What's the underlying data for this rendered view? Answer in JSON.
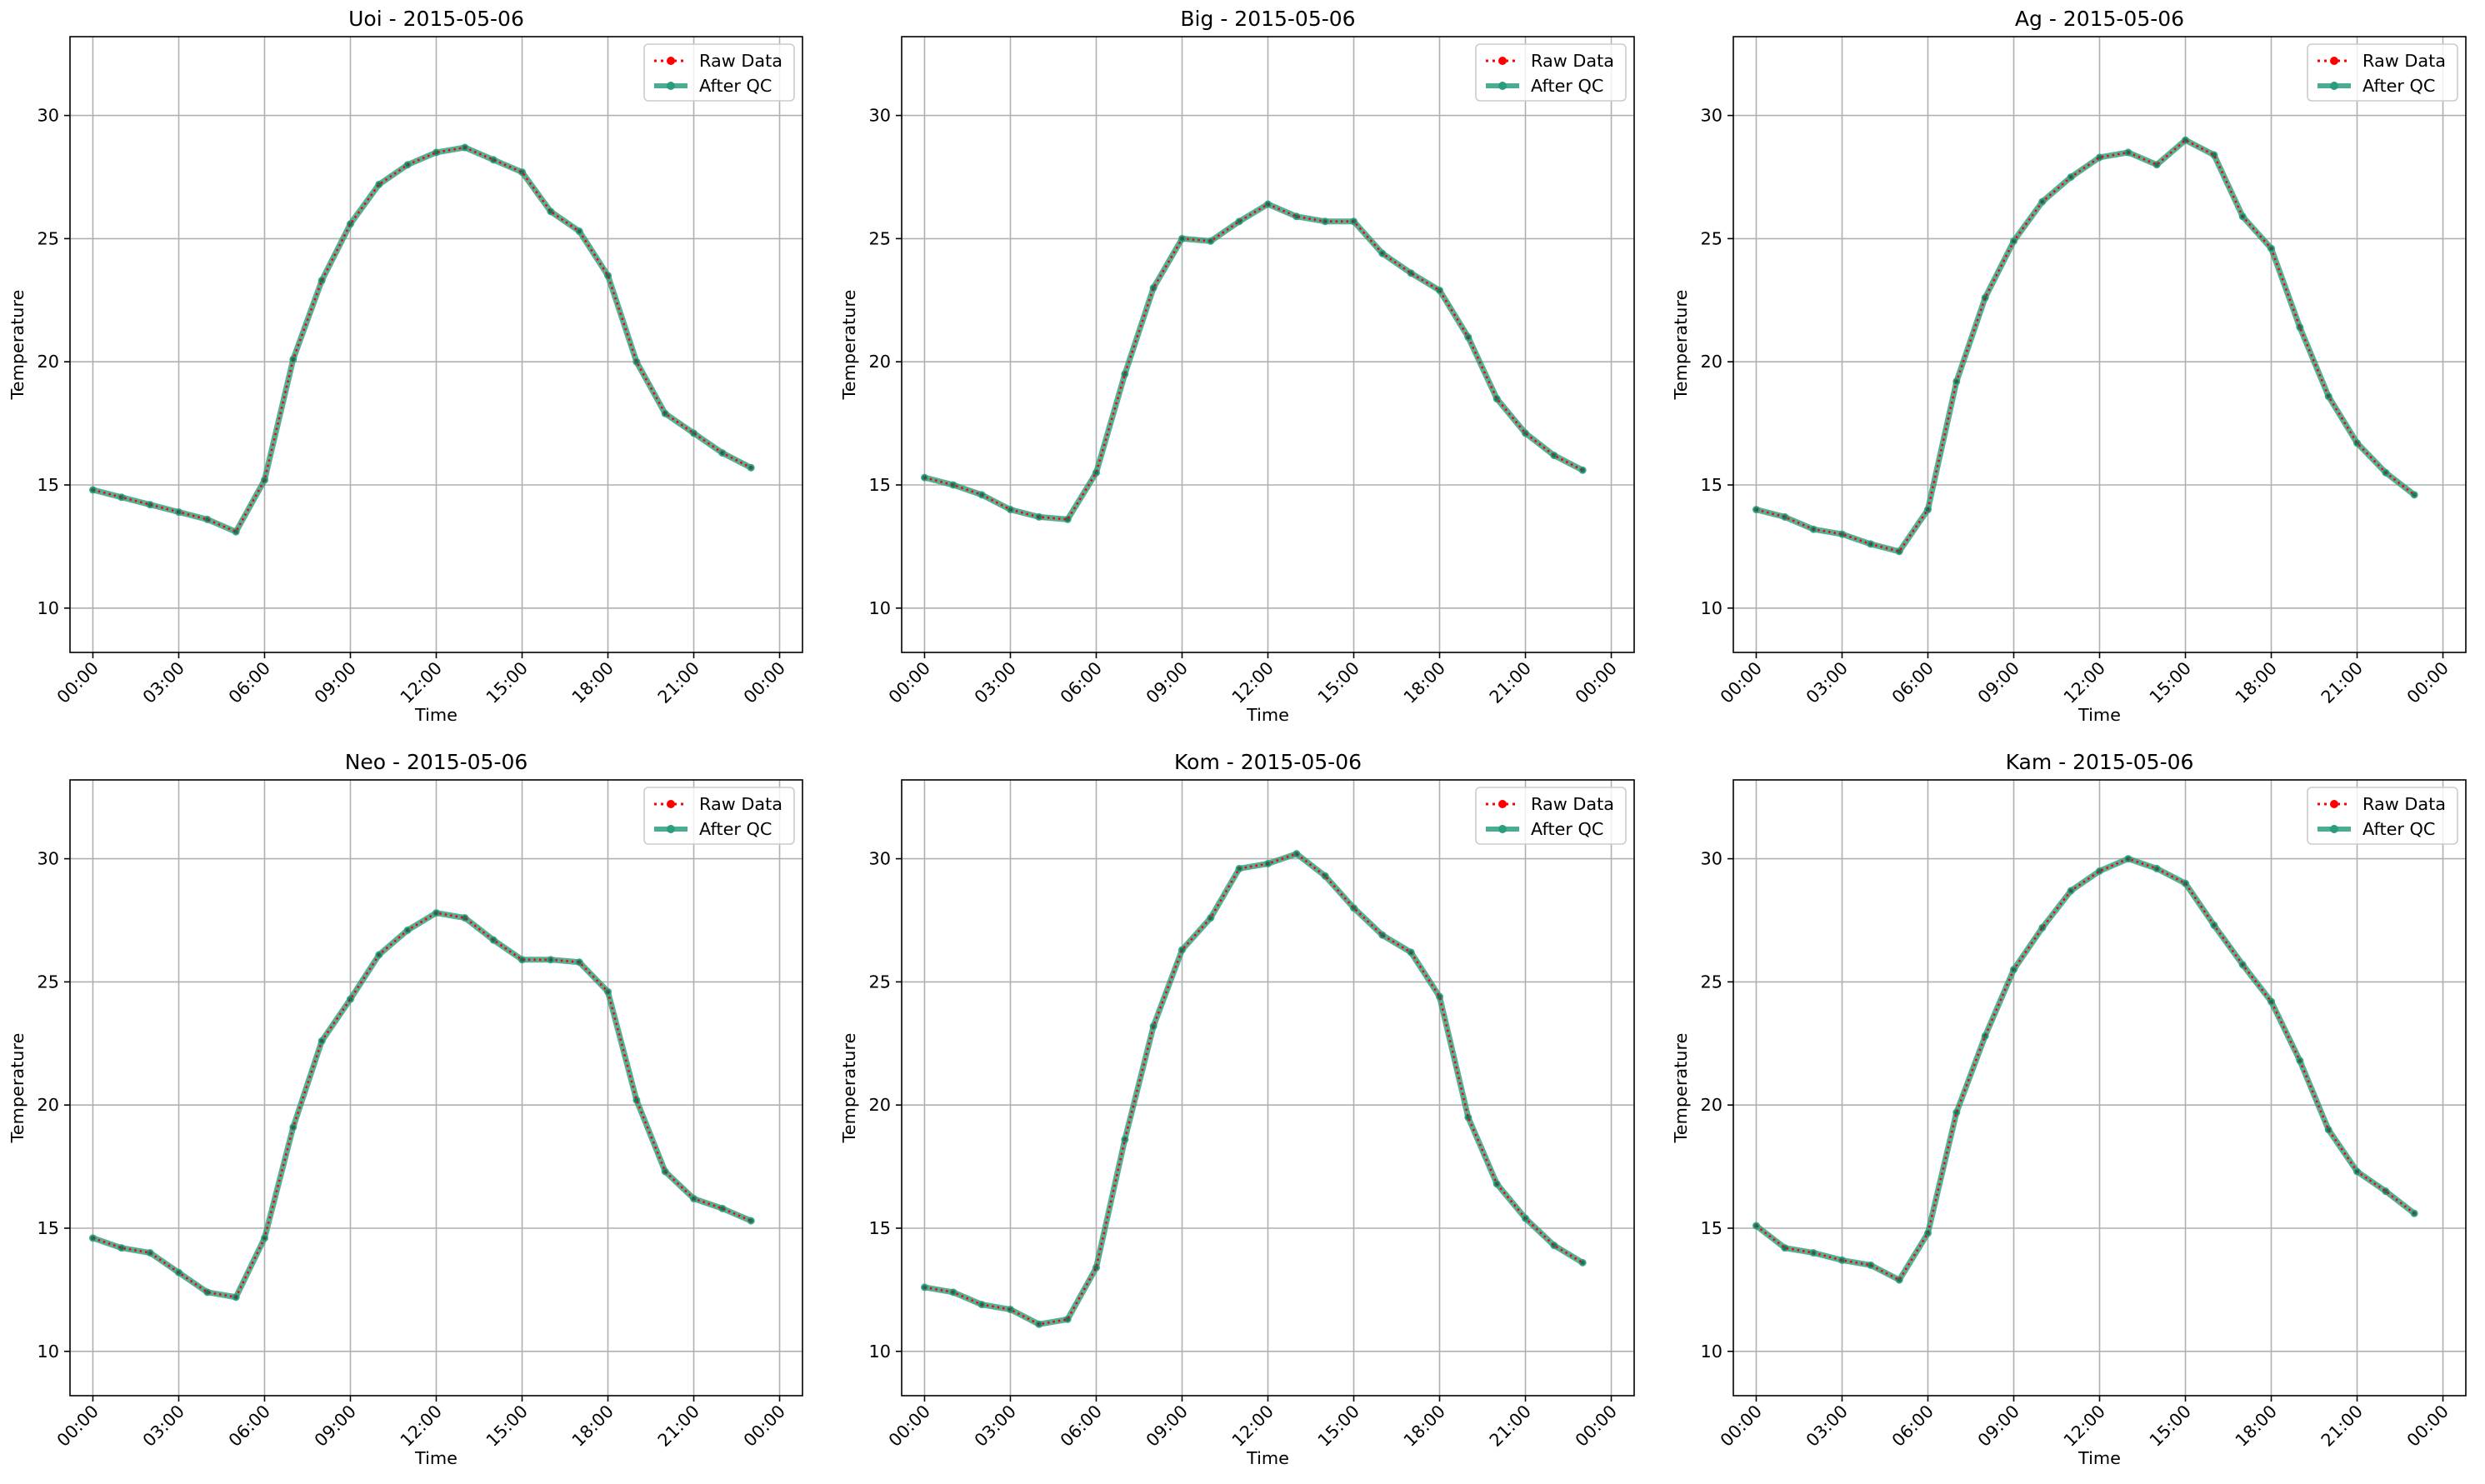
{
  "chart_data": [
    {
      "type": "line",
      "title": "Uoi - 2015-05-06",
      "xlabel": "Time",
      "ylabel": "Temperature",
      "xlim": [
        -0.8,
        24.8
      ],
      "ylim": [
        8.2,
        33.2
      ],
      "x": [
        0,
        1,
        2,
        3,
        4,
        5,
        6,
        7,
        8,
        9,
        10,
        11,
        12,
        13,
        14,
        15,
        16,
        17,
        18,
        19,
        20,
        21,
        22,
        23
      ],
      "xticks": [
        0,
        3,
        6,
        9,
        12,
        15,
        18,
        21,
        24
      ],
      "xtick_labels": [
        "00:00",
        "03:00",
        "06:00",
        "09:00",
        "12:00",
        "15:00",
        "18:00",
        "21:00",
        "00:00"
      ],
      "yticks": [
        10,
        15,
        20,
        25,
        30
      ],
      "ytick_labels": [
        "10",
        "15",
        "20",
        "25",
        "30"
      ],
      "grid": true,
      "legend_position": "top-right",
      "series": [
        {
          "name": "Raw Data",
          "color": "#ff0000",
          "style": "dotted-with-markers",
          "values": [
            14.8,
            14.5,
            14.2,
            13.9,
            13.6,
            13.1,
            15.2,
            20.1,
            23.3,
            25.6,
            27.2,
            28.0,
            28.5,
            28.7,
            28.2,
            27.7,
            26.1,
            25.3,
            23.5,
            20.0,
            17.9,
            17.1,
            16.3,
            15.7
          ]
        },
        {
          "name": "After QC",
          "color": "#2a9d7c",
          "style": "solid-with-markers",
          "values": [
            14.8,
            14.5,
            14.2,
            13.9,
            13.6,
            13.1,
            15.2,
            20.1,
            23.3,
            25.6,
            27.2,
            28.0,
            28.5,
            28.7,
            28.2,
            27.7,
            26.1,
            25.3,
            23.5,
            20.0,
            17.9,
            17.1,
            16.3,
            15.7
          ]
        }
      ]
    },
    {
      "type": "line",
      "title": "Big - 2015-05-06",
      "xlabel": "Time",
      "ylabel": "Temperature",
      "xlim": [
        -0.8,
        24.8
      ],
      "ylim": [
        8.2,
        33.2
      ],
      "x": [
        0,
        1,
        2,
        3,
        4,
        5,
        6,
        7,
        8,
        9,
        10,
        11,
        12,
        13,
        14,
        15,
        16,
        17,
        18,
        19,
        20,
        21,
        22,
        23
      ],
      "xticks": [
        0,
        3,
        6,
        9,
        12,
        15,
        18,
        21,
        24
      ],
      "xtick_labels": [
        "00:00",
        "03:00",
        "06:00",
        "09:00",
        "12:00",
        "15:00",
        "18:00",
        "21:00",
        "00:00"
      ],
      "yticks": [
        10,
        15,
        20,
        25,
        30
      ],
      "ytick_labels": [
        "10",
        "15",
        "20",
        "25",
        "30"
      ],
      "grid": true,
      "legend_position": "top-right",
      "series": [
        {
          "name": "Raw Data",
          "color": "#ff0000",
          "style": "dotted-with-markers",
          "values": [
            15.3,
            15.0,
            14.6,
            14.0,
            13.7,
            13.6,
            15.5,
            19.5,
            23.0,
            25.0,
            24.9,
            25.7,
            26.4,
            25.9,
            25.7,
            25.7,
            24.4,
            23.6,
            22.9,
            21.0,
            18.5,
            17.1,
            16.2,
            15.6
          ]
        },
        {
          "name": "After QC",
          "color": "#2a9d7c",
          "style": "solid-with-markers",
          "values": [
            15.3,
            15.0,
            14.6,
            14.0,
            13.7,
            13.6,
            15.5,
            19.5,
            23.0,
            25.0,
            24.9,
            25.7,
            26.4,
            25.9,
            25.7,
            25.7,
            24.4,
            23.6,
            22.9,
            21.0,
            18.5,
            17.1,
            16.2,
            15.6
          ]
        }
      ]
    },
    {
      "type": "line",
      "title": "Ag - 2015-05-06",
      "xlabel": "Time",
      "ylabel": "Temperature",
      "xlim": [
        -0.8,
        24.8
      ],
      "ylim": [
        8.2,
        33.2
      ],
      "x": [
        0,
        1,
        2,
        3,
        4,
        5,
        6,
        7,
        8,
        9,
        10,
        11,
        12,
        13,
        14,
        15,
        16,
        17,
        18,
        19,
        20,
        21,
        22,
        23
      ],
      "xticks": [
        0,
        3,
        6,
        9,
        12,
        15,
        18,
        21,
        24
      ],
      "xtick_labels": [
        "00:00",
        "03:00",
        "06:00",
        "09:00",
        "12:00",
        "15:00",
        "18:00",
        "21:00",
        "00:00"
      ],
      "yticks": [
        10,
        15,
        20,
        25,
        30
      ],
      "ytick_labels": [
        "10",
        "15",
        "20",
        "25",
        "30"
      ],
      "grid": true,
      "legend_position": "top-right",
      "series": [
        {
          "name": "Raw Data",
          "color": "#ff0000",
          "style": "dotted-with-markers",
          "values": [
            14.0,
            13.7,
            13.2,
            13.0,
            12.6,
            12.3,
            14.0,
            19.2,
            22.6,
            24.9,
            26.5,
            27.5,
            28.3,
            28.5,
            28.0,
            29.0,
            28.4,
            25.9,
            24.6,
            21.4,
            18.6,
            16.7,
            15.5,
            14.6
          ]
        },
        {
          "name": "After QC",
          "color": "#2a9d7c",
          "style": "solid-with-markers",
          "values": [
            14.0,
            13.7,
            13.2,
            13.0,
            12.6,
            12.3,
            14.0,
            19.2,
            22.6,
            24.9,
            26.5,
            27.5,
            28.3,
            28.5,
            28.0,
            29.0,
            28.4,
            25.9,
            24.6,
            21.4,
            18.6,
            16.7,
            15.5,
            14.6
          ]
        }
      ]
    },
    {
      "type": "line",
      "title": "Neo - 2015-05-06",
      "xlabel": "Time",
      "ylabel": "Temperature",
      "xlim": [
        -0.8,
        24.8
      ],
      "ylim": [
        8.2,
        33.2
      ],
      "x": [
        0,
        1,
        2,
        3,
        4,
        5,
        6,
        7,
        8,
        9,
        10,
        11,
        12,
        13,
        14,
        15,
        16,
        17,
        18,
        19,
        20,
        21,
        22,
        23
      ],
      "xticks": [
        0,
        3,
        6,
        9,
        12,
        15,
        18,
        21,
        24
      ],
      "xtick_labels": [
        "00:00",
        "03:00",
        "06:00",
        "09:00",
        "12:00",
        "15:00",
        "18:00",
        "21:00",
        "00:00"
      ],
      "yticks": [
        10,
        15,
        20,
        25,
        30
      ],
      "ytick_labels": [
        "10",
        "15",
        "20",
        "25",
        "30"
      ],
      "grid": true,
      "legend_position": "top-right",
      "series": [
        {
          "name": "Raw Data",
          "color": "#ff0000",
          "style": "dotted-with-markers",
          "values": [
            14.6,
            14.2,
            14.0,
            13.2,
            12.4,
            12.2,
            14.6,
            19.1,
            22.6,
            24.3,
            26.1,
            27.1,
            27.8,
            27.6,
            26.7,
            25.9,
            25.9,
            25.8,
            24.6,
            20.2,
            17.3,
            16.2,
            15.8,
            15.3
          ]
        },
        {
          "name": "After QC",
          "color": "#2a9d7c",
          "style": "solid-with-markers",
          "values": [
            14.6,
            14.2,
            14.0,
            13.2,
            12.4,
            12.2,
            14.6,
            19.1,
            22.6,
            24.3,
            26.1,
            27.1,
            27.8,
            27.6,
            26.7,
            25.9,
            25.9,
            25.8,
            24.6,
            20.2,
            17.3,
            16.2,
            15.8,
            15.3
          ]
        }
      ]
    },
    {
      "type": "line",
      "title": "Kom - 2015-05-06",
      "xlabel": "Time",
      "ylabel": "Temperature",
      "xlim": [
        -0.8,
        24.8
      ],
      "ylim": [
        8.2,
        33.2
      ],
      "x": [
        0,
        1,
        2,
        3,
        4,
        5,
        6,
        7,
        8,
        9,
        10,
        11,
        12,
        13,
        14,
        15,
        16,
        17,
        18,
        19,
        20,
        21,
        22,
        23
      ],
      "xticks": [
        0,
        3,
        6,
        9,
        12,
        15,
        18,
        21,
        24
      ],
      "xtick_labels": [
        "00:00",
        "03:00",
        "06:00",
        "09:00",
        "12:00",
        "15:00",
        "18:00",
        "21:00",
        "00:00"
      ],
      "yticks": [
        10,
        15,
        20,
        25,
        30
      ],
      "ytick_labels": [
        "10",
        "15",
        "20",
        "25",
        "30"
      ],
      "grid": true,
      "legend_position": "top-right",
      "series": [
        {
          "name": "Raw Data",
          "color": "#ff0000",
          "style": "dotted-with-markers",
          "values": [
            12.6,
            12.4,
            11.9,
            11.7,
            11.1,
            11.3,
            13.4,
            18.6,
            23.2,
            26.3,
            27.6,
            29.6,
            29.8,
            30.2,
            29.3,
            28.0,
            26.9,
            26.2,
            24.4,
            19.5,
            16.8,
            15.4,
            14.3,
            13.6
          ]
        },
        {
          "name": "After QC",
          "color": "#2a9d7c",
          "style": "solid-with-markers",
          "values": [
            12.6,
            12.4,
            11.9,
            11.7,
            11.1,
            11.3,
            13.4,
            18.6,
            23.2,
            26.3,
            27.6,
            29.6,
            29.8,
            30.2,
            29.3,
            28.0,
            26.9,
            26.2,
            24.4,
            19.5,
            16.8,
            15.4,
            14.3,
            13.6
          ]
        }
      ]
    },
    {
      "type": "line",
      "title": "Kam - 2015-05-06",
      "xlabel": "Time",
      "ylabel": "Temperature",
      "xlim": [
        -0.8,
        24.8
      ],
      "ylim": [
        8.2,
        33.2
      ],
      "x": [
        0,
        1,
        2,
        3,
        4,
        5,
        6,
        7,
        8,
        9,
        10,
        11,
        12,
        13,
        14,
        15,
        16,
        17,
        18,
        19,
        20,
        21,
        22,
        23
      ],
      "xticks": [
        0,
        3,
        6,
        9,
        12,
        15,
        18,
        21,
        24
      ],
      "xtick_labels": [
        "00:00",
        "03:00",
        "06:00",
        "09:00",
        "12:00",
        "15:00",
        "18:00",
        "21:00",
        "00:00"
      ],
      "yticks": [
        10,
        15,
        20,
        25,
        30
      ],
      "ytick_labels": [
        "10",
        "15",
        "20",
        "25",
        "30"
      ],
      "grid": true,
      "legend_position": "top-right",
      "series": [
        {
          "name": "Raw Data",
          "color": "#ff0000",
          "style": "dotted-with-markers",
          "values": [
            15.1,
            14.2,
            14.0,
            13.7,
            13.5,
            12.9,
            14.8,
            19.7,
            22.8,
            25.5,
            27.2,
            28.7,
            29.5,
            30.0,
            29.6,
            29.0,
            27.3,
            25.7,
            24.2,
            21.8,
            19.0,
            17.3,
            16.5,
            15.6
          ]
        },
        {
          "name": "After QC",
          "color": "#2a9d7c",
          "style": "solid-with-markers",
          "values": [
            15.1,
            14.2,
            14.0,
            13.7,
            13.5,
            12.9,
            14.8,
            19.7,
            22.8,
            25.5,
            27.2,
            28.7,
            29.5,
            30.0,
            29.6,
            29.0,
            27.3,
            25.7,
            24.2,
            21.8,
            19.0,
            17.3,
            16.5,
            15.6
          ]
        }
      ]
    }
  ]
}
